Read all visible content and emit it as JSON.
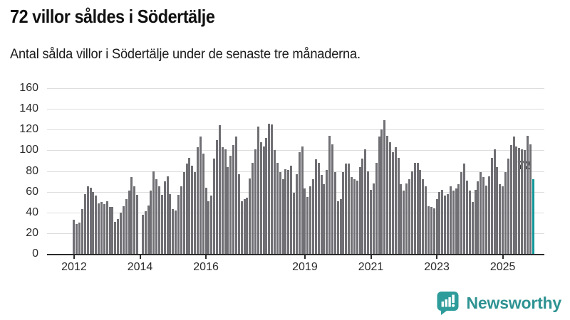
{
  "header": {
    "title": "72 villor såldes i Södertälje",
    "subtitle": "Antal sålda villor i Södertälje under de senaste tre månaderna."
  },
  "footer": {
    "brand": "Newsworthy",
    "logo_icon": "newsworthy-speech-bubble-bar-chart-icon"
  },
  "colors": {
    "bar": "#6f6f74",
    "highlight_bar": "#12989a",
    "grid": "#dedede",
    "axis": "#2b2b2b",
    "logo_teal": "#2e9c9a",
    "annotation_text": "#3a3a3a"
  },
  "chart_data": {
    "type": "bar",
    "title": "72 villor såldes i Södertälje",
    "subtitle": "Antal sålda villor i Södertälje under de senaste tre månaderna.",
    "xlabel": "",
    "ylabel": "",
    "ylim": [
      0,
      160
    ],
    "grid": true,
    "legend": false,
    "y_ticks": [
      0,
      20,
      40,
      60,
      80,
      100,
      120,
      140,
      160
    ],
    "x_ticks": [
      {
        "label": "2012",
        "index": 0
      },
      {
        "label": "2014",
        "index": 24
      },
      {
        "label": "2016",
        "index": 48
      },
      {
        "label": "2019",
        "index": 84
      },
      {
        "label": "2021",
        "index": 108
      },
      {
        "label": "2023",
        "index": 132
      },
      {
        "label": "2025",
        "index": 156
      }
    ],
    "series_note": "monthly bars, rolling 3-month sums, Jan 2012 - Dec 2025, one missing bar",
    "values": [
      33,
      29,
      30,
      43,
      58,
      65,
      64,
      60,
      56,
      49,
      50,
      48,
      51,
      45,
      45,
      31,
      34,
      40,
      46,
      53,
      61,
      74,
      65,
      57,
      null,
      38,
      41,
      47,
      61,
      80,
      72,
      65,
      57,
      70,
      75,
      58,
      43,
      42,
      57,
      65,
      79,
      87,
      93,
      85,
      79,
      103,
      113,
      97,
      64,
      51,
      56,
      92,
      110,
      124,
      103,
      101,
      84,
      95,
      105,
      113,
      77,
      51,
      53,
      54,
      73,
      88,
      101,
      123,
      108,
      104,
      112,
      126,
      125,
      100,
      88,
      79,
      72,
      82,
      81,
      85,
      59,
      77,
      98,
      104,
      63,
      55,
      65,
      72,
      91,
      88,
      76,
      67,
      81,
      114,
      106,
      79,
      51,
      53,
      79,
      87,
      87,
      74,
      72,
      71,
      84,
      92,
      101,
      80,
      62,
      68,
      88,
      113,
      120,
      129,
      114,
      108,
      98,
      103,
      93,
      67,
      61,
      68,
      72,
      80,
      88,
      88,
      81,
      72,
      65,
      46,
      45,
      44,
      53,
      60,
      62,
      56,
      58,
      65,
      61,
      63,
      67,
      79,
      87,
      71,
      61,
      50,
      62,
      70,
      79,
      74,
      66,
      75,
      93,
      101,
      84,
      67,
      65,
      79,
      92,
      105,
      113,
      104,
      102,
      101,
      100,
      114,
      106,
      72
    ],
    "highlight_index": 167,
    "annotation": {
      "text": "72",
      "index": 167,
      "value": 72
    }
  }
}
